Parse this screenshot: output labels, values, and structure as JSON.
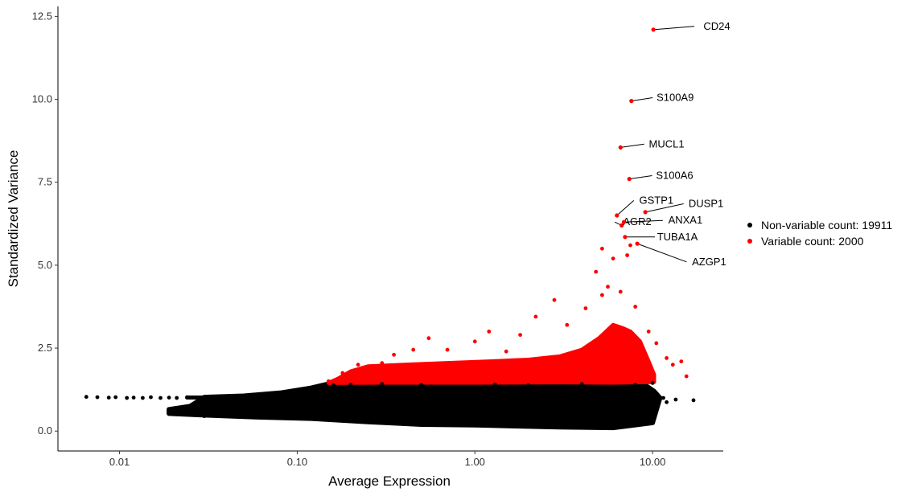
{
  "chart_data": {
    "type": "scatter",
    "xlabel": "Average Expression",
    "ylabel": "Standardized Variance",
    "x_scale": "log10",
    "xlim": [
      0.0045,
      25
    ],
    "ylim": [
      -0.6,
      12.8
    ],
    "x_ticks": [
      {
        "value": 0.01,
        "label": "0.01"
      },
      {
        "value": 0.1,
        "label": "0.10"
      },
      {
        "value": 1,
        "label": "1.00"
      },
      {
        "value": 10,
        "label": "10.00"
      }
    ],
    "y_ticks": [
      {
        "value": 0,
        "label": "0.0"
      },
      {
        "value": 2.5,
        "label": "2.5"
      },
      {
        "value": 5,
        "label": "5.0"
      },
      {
        "value": 7.5,
        "label": "7.5"
      },
      {
        "value": 10,
        "label": "10.0"
      },
      {
        "value": 12.5,
        "label": "12.5"
      }
    ],
    "grid": false,
    "legend_position": "right",
    "series": [
      {
        "name": "Non-variable count: 19911",
        "color": "#000000",
        "points": [
          [
            0.0065,
            1.03
          ],
          [
            0.0075,
            1.02
          ],
          [
            0.0087,
            1.01
          ],
          [
            0.0095,
            1.02
          ],
          [
            0.011,
            1.0
          ],
          [
            0.012,
            1.01
          ],
          [
            0.0135,
            1.0
          ],
          [
            0.015,
            1.02
          ],
          [
            0.017,
            1.0
          ],
          [
            0.019,
            1.01
          ],
          [
            0.021,
            1.0
          ],
          [
            0.024,
            1.02
          ],
          [
            0.019,
            0.58
          ],
          [
            0.022,
            0.62
          ],
          [
            0.025,
            0.55
          ],
          [
            0.028,
            0.65
          ],
          [
            0.03,
            0.45
          ],
          [
            0.032,
            0.7
          ],
          [
            0.035,
            0.6
          ],
          [
            0.038,
            0.75
          ],
          [
            0.04,
            0.52
          ],
          [
            0.043,
            0.82
          ],
          [
            0.047,
            0.43
          ],
          [
            0.05,
            0.68
          ],
          [
            0.055,
            0.9
          ],
          [
            0.06,
            0.62
          ],
          [
            0.065,
            0.95
          ],
          [
            0.07,
            0.55
          ],
          [
            0.075,
            1.05
          ],
          [
            0.08,
            0.7
          ],
          [
            0.085,
            0.5
          ],
          [
            0.09,
            1.1
          ],
          [
            0.1,
            0.8
          ],
          [
            0.105,
            0.4
          ],
          [
            0.11,
            1.2
          ],
          [
            0.12,
            0.6
          ],
          [
            0.13,
            1.3
          ],
          [
            0.14,
            0.95
          ],
          [
            0.15,
            0.35
          ],
          [
            0.16,
            1.38
          ],
          [
            0.18,
            0.7
          ],
          [
            0.2,
            1.4
          ],
          [
            0.22,
            0.3
          ],
          [
            0.25,
            1.0
          ],
          [
            0.3,
            1.42
          ],
          [
            0.35,
            0.25
          ],
          [
            0.4,
            0.85
          ],
          [
            0.5,
            1.4
          ],
          [
            0.6,
            0.2
          ],
          [
            0.8,
            1.2
          ],
          [
            1.0,
            0.18
          ],
          [
            1.3,
            1.41
          ],
          [
            1.6,
            0.6
          ],
          [
            2.0,
            1.38
          ],
          [
            2.5,
            0.15
          ],
          [
            3.0,
            1.0
          ],
          [
            3.5,
            0.12
          ],
          [
            4.0,
            1.42
          ],
          [
            5.0,
            0.2
          ],
          [
            6.0,
            1.25
          ],
          [
            7.0,
            0.3
          ],
          [
            8.0,
            1.4
          ],
          [
            9.0,
            0.6
          ],
          [
            10.0,
            1.45
          ],
          [
            9.5,
            1.2
          ],
          [
            11.5,
            1.0
          ],
          [
            12.0,
            0.87
          ],
          [
            13.5,
            0.95
          ],
          [
            17.0,
            0.93
          ]
        ]
      },
      {
        "name": "Variable count: 2000",
        "color": "#ff0000",
        "points": [
          [
            0.15,
            1.5
          ],
          [
            0.18,
            1.75
          ],
          [
            0.22,
            2.0
          ],
          [
            0.3,
            2.05
          ],
          [
            0.35,
            2.3
          ],
          [
            0.45,
            2.45
          ],
          [
            0.55,
            2.8
          ],
          [
            0.7,
            2.45
          ],
          [
            1.0,
            2.7
          ],
          [
            1.2,
            3.0
          ],
          [
            1.5,
            2.4
          ],
          [
            1.8,
            2.9
          ],
          [
            2.2,
            3.45
          ],
          [
            2.8,
            3.95
          ],
          [
            3.3,
            3.2
          ],
          [
            4.2,
            3.7
          ],
          [
            4.8,
            4.8
          ],
          [
            5.2,
            4.1
          ],
          [
            5.2,
            5.5
          ],
          [
            5.6,
            4.35
          ],
          [
            6.0,
            5.2
          ],
          [
            6.6,
            4.2
          ],
          [
            7.2,
            5.3
          ],
          [
            7.5,
            5.6
          ],
          [
            8.0,
            3.75
          ],
          [
            9.5,
            3.0
          ],
          [
            10.5,
            2.65
          ],
          [
            12.0,
            2.2
          ],
          [
            13.0,
            2.0
          ],
          [
            14.5,
            2.1
          ],
          [
            15.5,
            1.65
          ],
          [
            8.5,
            2.35
          ]
        ]
      }
    ],
    "labeled_genes": [
      {
        "name": "CD24",
        "x": 10.1,
        "y": 12.1,
        "lx": 23.0,
        "ly": 12.2
      },
      {
        "name": "S100A9",
        "x": 7.6,
        "y": 9.95,
        "lx": 13.4,
        "ly": 10.05
      },
      {
        "name": "MUCL1",
        "x": 6.6,
        "y": 8.55,
        "lx": 12.0,
        "ly": 8.65
      },
      {
        "name": "S100A6",
        "x": 7.4,
        "y": 7.6,
        "lx": 13.3,
        "ly": 7.7
      },
      {
        "name": "GSTP1",
        "x": 6.3,
        "y": 6.5,
        "lx": 10.5,
        "ly": 6.95
      },
      {
        "name": "DUSP1",
        "x": 9.1,
        "y": 6.6,
        "lx": 20.0,
        "ly": 6.85
      },
      {
        "name": "AGR2",
        "x": 6.7,
        "y": 6.2,
        "lx": 8.2,
        "ly": 6.3
      },
      {
        "name": "ANXA1",
        "x": 6.9,
        "y": 6.3,
        "lx": 15.3,
        "ly": 6.35
      },
      {
        "name": "TUBA1A",
        "x": 7.0,
        "y": 5.85,
        "lx": 13.8,
        "ly": 5.85
      },
      {
        "name": "AZGP1",
        "x": 8.2,
        "y": 5.65,
        "lx": 20.8,
        "ly": 5.1
      }
    ]
  }
}
